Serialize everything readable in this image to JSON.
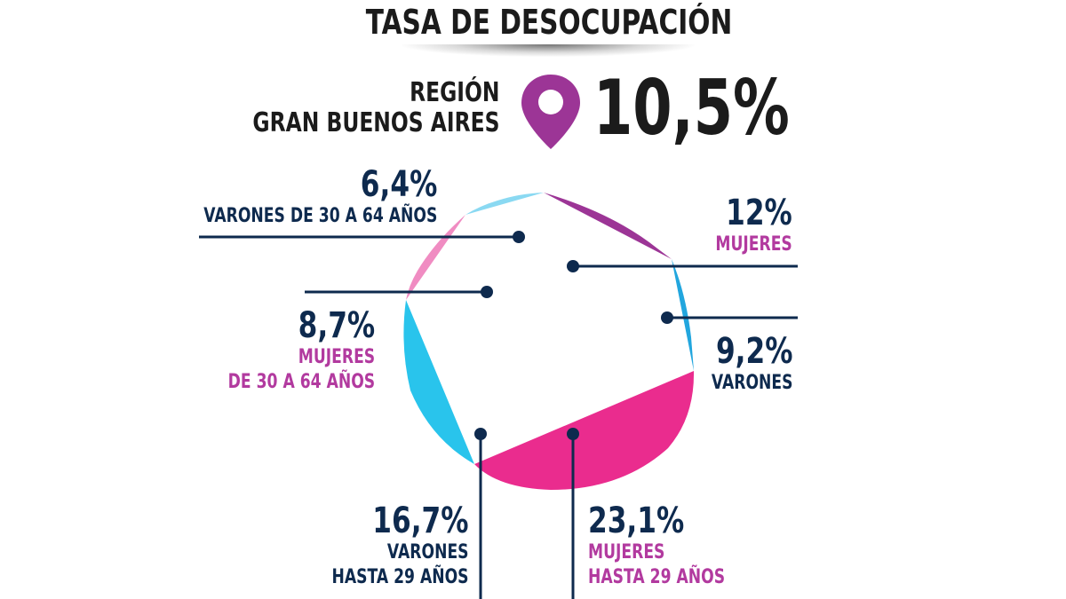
{
  "title": "TASA DE DESOCUPACIÓN",
  "region": {
    "line1": "REGIÓN",
    "line2": "GRAN BUENOS AIRES",
    "rate": "10,5%",
    "pin_icon": "location-pin-icon"
  },
  "colors": {
    "navy": "#0e2a4e",
    "magenta_text": "#b23a9f",
    "purple": "#9c3596",
    "pink": "#ea2c8e",
    "cyan": "#29c4ec",
    "light_cyan": "#8ad9f2",
    "light_pink": "#f08cc2",
    "blue": "#22a6de"
  },
  "chart_data": {
    "type": "pie",
    "categories": [
      "MUJERES",
      "VARONES",
      "MUJERES HASTA 29 AÑOS",
      "VARONES HASTA 29 AÑOS",
      "MUJERES DE 30 A 64 AÑOS",
      "VARONES DE 30 A 64 AÑOS"
    ],
    "values": [
      12,
      9.2,
      23.1,
      16.7,
      8.7,
      6.4
    ],
    "labels": {
      "mujeres": {
        "pct": "12%",
        "desc": [
          "MUJERES"
        ]
      },
      "varones": {
        "pct": "9,2%",
        "desc": [
          "VARONES"
        ]
      },
      "mujeres_29": {
        "pct": "23,1%",
        "desc": [
          "MUJERES",
          "HASTA 29 AÑOS"
        ]
      },
      "varones_29": {
        "pct": "16,7%",
        "desc": [
          "VARONES",
          "HASTA 29 AÑOS"
        ]
      },
      "mujeres_30_64": {
        "pct": "8,7%",
        "desc": [
          "MUJERES",
          "DE 30 A 64 AÑOS"
        ]
      },
      "varones_30_64": {
        "pct": "6,4%",
        "desc": [
          "VARONES DE 30 A 64 AÑOS"
        ]
      }
    }
  }
}
